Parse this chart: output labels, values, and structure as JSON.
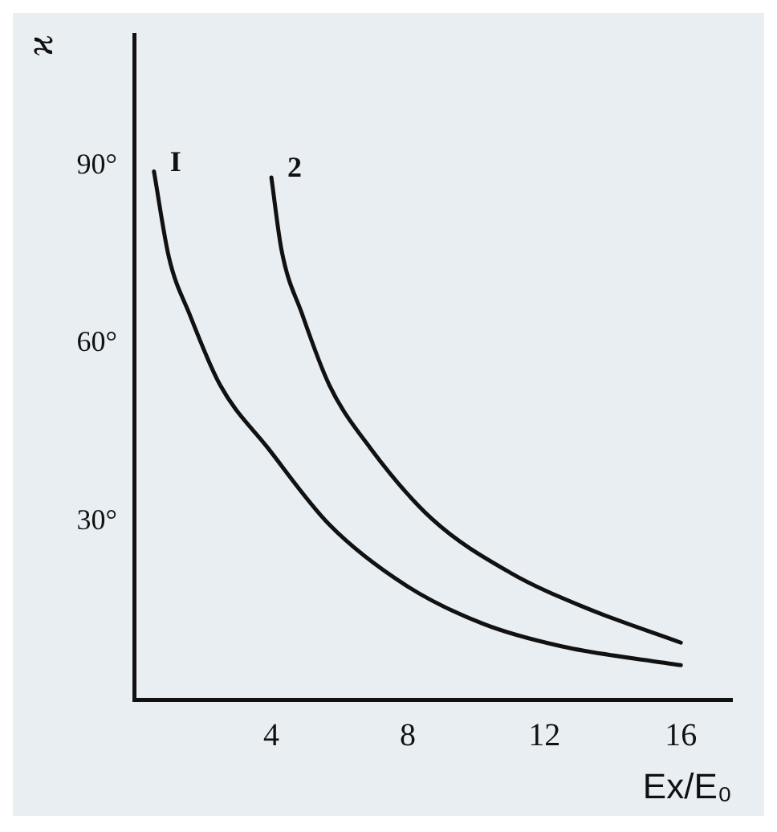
{
  "chart_data": {
    "type": "line",
    "xlabel": "Ex/E₀",
    "ylabel": "ϰ",
    "xlim": [
      0,
      17.5
    ],
    "ylim": [
      0,
      112
    ],
    "xticks": [
      4,
      8,
      12,
      16
    ],
    "yticks": [
      {
        "value": 30,
        "label": "30°"
      },
      {
        "value": 60,
        "label": "60°"
      },
      {
        "value": 90,
        "label": "90°"
      }
    ],
    "grid": false,
    "legend": false,
    "marker": "none",
    "line_style": "solid",
    "series": [
      {
        "name": "I",
        "color": "#111111",
        "x": [
          0.56,
          1.0,
          1.6,
          2.5,
          3.9,
          5.7,
          7.96,
          10.2,
          12.5,
          16
        ],
        "values": [
          89,
          74.5,
          65,
          53,
          42.4,
          29.5,
          19.2,
          12.8,
          9,
          5.8
        ]
      },
      {
        "name": "2",
        "color": "#111111",
        "x": [
          4.0,
          4.3,
          4.9,
          5.7,
          6.9,
          8.7,
          11,
          13.2,
          16
        ],
        "values": [
          88,
          75.7,
          65,
          53,
          42.4,
          30.5,
          21.4,
          15.5,
          9.6
        ]
      }
    ]
  }
}
